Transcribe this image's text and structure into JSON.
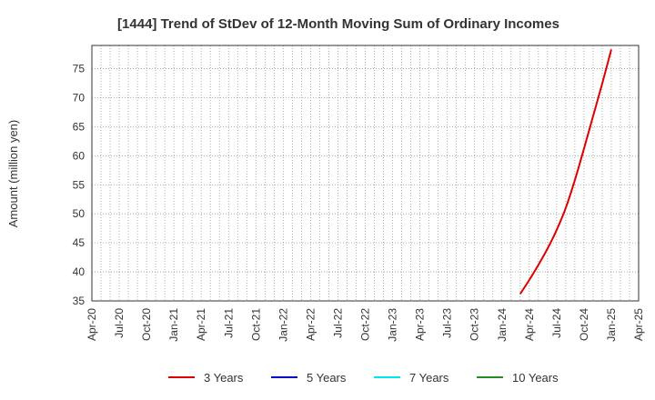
{
  "chart_data": {
    "type": "line",
    "title": "[1444]  Trend of StDev of 12-Month Moving Sum of Ordinary Incomes",
    "xlabel": "",
    "ylabel": "Amount (million yen)",
    "ylim": [
      35,
      79
    ],
    "yticks": [
      35,
      40,
      45,
      50,
      55,
      60,
      65,
      70,
      75
    ],
    "xticks": [
      "Apr-20",
      "Jul-20",
      "Oct-20",
      "Jan-21",
      "Apr-21",
      "Jul-21",
      "Oct-21",
      "Jan-22",
      "Apr-22",
      "Jul-22",
      "Oct-22",
      "Jan-23",
      "Apr-23",
      "Jul-23",
      "Oct-23",
      "Jan-24",
      "Apr-24",
      "Jul-24",
      "Oct-24",
      "Jan-25",
      "Apr-25"
    ],
    "x_start": "2020-04",
    "x_months_total": 60,
    "grid": true,
    "legend_position": "bottom",
    "series": [
      {
        "name": "3 Years",
        "color": "#dd0000",
        "points": [
          {
            "month_index": 47,
            "value": 36.2
          },
          {
            "month_index": 48,
            "value": 38.6
          },
          {
            "month_index": 49,
            "value": 41.2
          },
          {
            "month_index": 50,
            "value": 44.0
          },
          {
            "month_index": 51,
            "value": 47.2
          },
          {
            "month_index": 52,
            "value": 51.0
          },
          {
            "month_index": 53,
            "value": 55.8
          },
          {
            "month_index": 54,
            "value": 61.2
          },
          {
            "month_index": 55,
            "value": 66.8
          },
          {
            "month_index": 56,
            "value": 72.4
          },
          {
            "month_index": 57,
            "value": 78.3
          }
        ]
      },
      {
        "name": "5 Years",
        "color": "#0000cc",
        "points": []
      },
      {
        "name": "7 Years",
        "color": "#00e5ee",
        "points": []
      },
      {
        "name": "10 Years",
        "color": "#228b22",
        "points": []
      }
    ]
  }
}
